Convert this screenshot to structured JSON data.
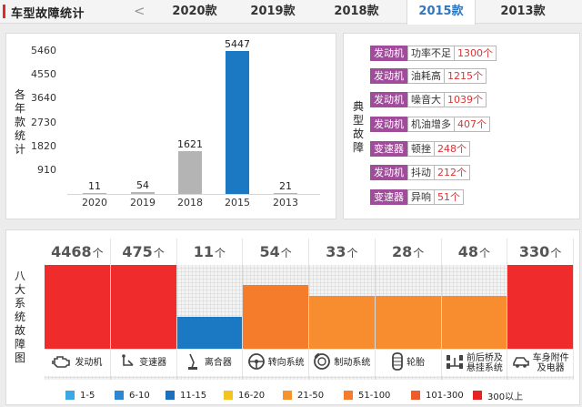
{
  "header": {
    "title": "车型故障统计",
    "prev_arrow": "<",
    "tabs": [
      {
        "label": "2020款",
        "active": false
      },
      {
        "label": "2019款",
        "active": false
      },
      {
        "label": "2018款",
        "active": false
      },
      {
        "label": "2015款",
        "active": true
      },
      {
        "label": "2013款",
        "active": false
      }
    ]
  },
  "yearly_panel": {
    "vertical_label": [
      "各",
      "年",
      "款",
      "统",
      "计"
    ]
  },
  "chart_data": {
    "type": "bar",
    "title": "各年款统计",
    "categories": [
      "2020",
      "2019",
      "2018",
      "2015",
      "2013"
    ],
    "values": [
      11,
      54,
      1621,
      5447,
      21
    ],
    "value_labels": [
      "11",
      "54",
      "1621",
      "5447",
      "21"
    ],
    "ylim": [
      0,
      5460
    ],
    "yticks": [
      "5460",
      "4550",
      "3640",
      "2730",
      "1820",
      "910"
    ],
    "bar_colors": [
      "#b4b4b4",
      "#b4b4b4",
      "#b4b4b4",
      "#1b79c3",
      "#b4b4b4"
    ]
  },
  "typical_panel": {
    "vertical_label": [
      "典",
      "型",
      "故",
      "障"
    ],
    "faults": [
      {
        "category": "发动机",
        "name": "功率不足",
        "count": "1300个"
      },
      {
        "category": "发动机",
        "name": "油耗高",
        "count": "1215个"
      },
      {
        "category": "发动机",
        "name": "噪音大",
        "count": "1039个"
      },
      {
        "category": "发动机",
        "name": "机油增多",
        "count": "407个"
      },
      {
        "category": "变速器",
        "name": "顿挫",
        "count": "248个"
      },
      {
        "category": "发动机",
        "name": "抖动",
        "count": "212个"
      },
      {
        "category": "变速器",
        "name": "异响",
        "count": "51个"
      }
    ]
  },
  "systems_panel": {
    "vertical_label": [
      "八",
      "大",
      "系",
      "统",
      "故",
      "障",
      "图"
    ],
    "unit": "个",
    "systems": [
      {
        "count": "4468",
        "label": [
          "发动机"
        ],
        "icon": "engine-icon",
        "fill_fraction": 1.0,
        "color": "#f02b2b"
      },
      {
        "count": "475",
        "label": [
          "变速器"
        ],
        "icon": "gear-shift-icon",
        "fill_fraction": 1.0,
        "color": "#f02b2b"
      },
      {
        "count": "11",
        "label": [
          "离合器"
        ],
        "icon": "clutch-pedal-icon",
        "fill_fraction": 0.38,
        "color": "#1b79c3"
      },
      {
        "count": "54",
        "label": [
          "转向系统"
        ],
        "icon": "steering-wheel-icon",
        "fill_fraction": 0.76,
        "color": "#f47c2a"
      },
      {
        "count": "33",
        "label": [
          "制动系统"
        ],
        "icon": "brake-disc-icon",
        "fill_fraction": 0.63,
        "color": "#f78d2e"
      },
      {
        "count": "28",
        "label": [
          "轮胎"
        ],
        "icon": "tire-icon",
        "fill_fraction": 0.63,
        "color": "#f78d2e"
      },
      {
        "count": "48",
        "label": [
          "前后桥及",
          "悬挂系统"
        ],
        "icon": "axle-icon",
        "fill_fraction": 0.63,
        "color": "#f78d2e"
      },
      {
        "count": "330",
        "label": [
          "车身附件",
          "及电器"
        ],
        "icon": "body-electric-icon",
        "fill_fraction": 1.0,
        "color": "#f02b2b"
      }
    ]
  },
  "legend": [
    {
      "label": "1-5",
      "color": "#3aa8e4"
    },
    {
      "label": "6-10",
      "color": "#2b87d6"
    },
    {
      "label": "11-15",
      "color": "#1b6fc0"
    },
    {
      "label": "16-20",
      "color": "#f4c41e"
    },
    {
      "label": "21-50",
      "color": "#f7922d"
    },
    {
      "label": "51-100",
      "color": "#f47c2a"
    },
    {
      "label": "101-300",
      "color": "#ee5a2a"
    },
    {
      "label": "300以上",
      "color": "#e8231f"
    }
  ]
}
